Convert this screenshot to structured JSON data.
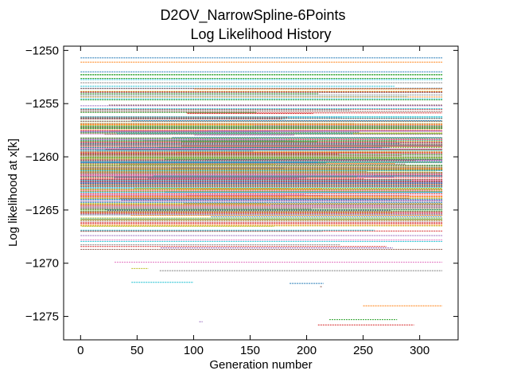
{
  "chart_data": {
    "type": "line",
    "title": "D2OV_NarrowSpline-6Points",
    "subtitle": "Log Likelihood History",
    "xlabel": "Generation number",
    "ylabel": "Log likelihood at x[k]",
    "xlim": [
      -15,
      334
    ],
    "ylim": [
      -1277.2,
      -1249.6
    ],
    "xticks": [
      0,
      50,
      100,
      150,
      200,
      250,
      300
    ],
    "yticks": [
      -1250,
      -1255,
      -1260,
      -1265,
      -1270,
      -1275
    ],
    "xtick_labels": [
      "0",
      "50",
      "100",
      "150",
      "200",
      "250",
      "300"
    ],
    "ytick_labels": [
      "−1250",
      "−1255",
      "−1260",
      "−1265",
      "−1270",
      "−1275"
    ],
    "grid": false,
    "legend": "none",
    "line_style": "dashed",
    "num_series_approx": 320,
    "series": [
      {
        "x": [
          0,
          320
        ],
        "y": [
          -1250.7,
          -1250.7
        ]
      },
      {
        "x": [
          0,
          320
        ],
        "y": [
          -1251.1,
          -1251.1
        ]
      },
      {
        "x": [
          0,
          320
        ],
        "y": [
          -1252.3,
          -1252.3
        ]
      },
      {
        "x": [
          0,
          320
        ],
        "y": [
          -1253.9,
          -1253.9
        ]
      },
      {
        "x": [
          0,
          320
        ],
        "y": [
          -1255.2,
          -1255.2
        ]
      },
      {
        "x": [
          0,
          320
        ],
        "y": [
          -1256.4,
          -1256.4
        ]
      },
      {
        "x": [
          0,
          320
        ],
        "y": [
          -1257.6,
          -1257.6
        ]
      },
      {
        "x": [
          0,
          320
        ],
        "y": [
          -1258.9,
          -1258.9
        ]
      },
      {
        "x": [
          0,
          320
        ],
        "y": [
          -1260.1,
          -1260.1
        ]
      },
      {
        "x": [
          0,
          320
        ],
        "y": [
          -1261.3,
          -1261.3
        ]
      },
      {
        "x": [
          0,
          320
        ],
        "y": [
          -1262.5,
          -1262.5
        ]
      },
      {
        "x": [
          0,
          320
        ],
        "y": [
          -1263.8,
          -1263.8
        ]
      },
      {
        "x": [
          0,
          320
        ],
        "y": [
          -1265.0,
          -1265.0
        ]
      },
      {
        "x": [
          0,
          320
        ],
        "y": [
          -1266.2,
          -1266.2
        ]
      },
      {
        "x": [
          0,
          320
        ],
        "y": [
          -1267.4,
          -1267.4
        ]
      },
      {
        "x": [
          0,
          320
        ],
        "y": [
          -1268.7,
          -1268.7
        ]
      },
      {
        "x": [
          30,
          320
        ],
        "y": [
          -1269.9,
          -1269.9
        ]
      },
      {
        "x": [
          70,
          320
        ],
        "y": [
          -1270.7,
          -1270.7
        ]
      },
      {
        "x": [
          45,
          60
        ],
        "y": [
          -1270.5,
          -1270.5
        ]
      },
      {
        "x": [
          45,
          100
        ],
        "y": [
          -1271.8,
          -1271.8
        ]
      },
      {
        "x": [
          185,
          215
        ],
        "y": [
          -1271.9,
          -1271.9
        ]
      },
      {
        "x": [
          250,
          320
        ],
        "y": [
          -1274.0,
          -1274.0
        ]
      },
      {
        "x": [
          220,
          280
        ],
        "y": [
          -1275.3,
          -1275.3
        ]
      },
      {
        "x": [
          210,
          295
        ],
        "y": [
          -1275.8,
          -1275.8
        ]
      },
      {
        "x": [
          105,
          108
        ],
        "y": [
          -1275.5,
          -1275.5
        ]
      },
      {
        "x": [
          212,
          214
        ],
        "y": [
          -1272.2,
          -1272.2
        ]
      }
    ],
    "colors": [
      "#1f77b4",
      "#ff7f0e",
      "#2ca02c",
      "#d62728",
      "#9467bd",
      "#8c564b",
      "#e377c2",
      "#7f7f7f",
      "#bcbd22",
      "#17becf"
    ]
  }
}
